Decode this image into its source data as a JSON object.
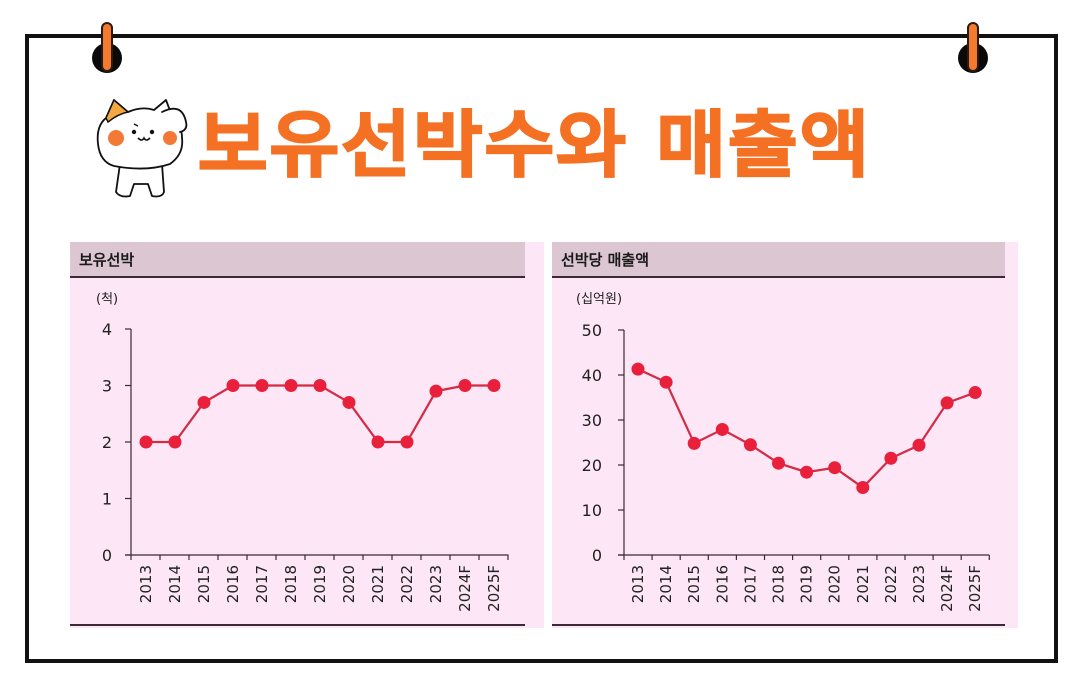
{
  "page": {
    "title": "보유선박수와 매출액",
    "accent_color": "#f47124",
    "line_color": "#e8203c",
    "panel_bg": "#fde6f5",
    "panel_header_bg": "#dcc6d2"
  },
  "panels": [
    {
      "header": "보유선박",
      "unit": "(척)"
    },
    {
      "header": "선박당 매출액",
      "unit": "(십억원)"
    }
  ],
  "chart_data": [
    {
      "type": "line",
      "title": "보유선박",
      "ylabel": "(척)",
      "xlabel": "",
      "categories": [
        "2013",
        "2014",
        "2015",
        "2016",
        "2017",
        "2018",
        "2019",
        "2020",
        "2021",
        "2022",
        "2023",
        "2024F",
        "2025F"
      ],
      "series": [
        {
          "name": "보유선박",
          "values": [
            2,
            2,
            2.7,
            3,
            3,
            3,
            3,
            2.7,
            2,
            2,
            2.9,
            3,
            3
          ]
        }
      ],
      "ylim": [
        0,
        4
      ],
      "yticks": [
        0,
        1,
        2,
        3,
        4
      ],
      "grid": false,
      "legend": "none"
    },
    {
      "type": "line",
      "title": "선박당 매출액",
      "ylabel": "(십억원)",
      "xlabel": "",
      "categories": [
        "2013",
        "2014",
        "2015",
        "2016",
        "2017",
        "2018",
        "2019",
        "2020",
        "2021",
        "2022",
        "2023",
        "2024F",
        "2025F"
      ],
      "series": [
        {
          "name": "선박당 매출액",
          "values": [
            41.3,
            38.4,
            24.8,
            27.9,
            24.5,
            20.4,
            18.4,
            19.4,
            15.0,
            21.5,
            24.4,
            33.8,
            36.1
          ]
        }
      ],
      "ylim": [
        0,
        50
      ],
      "yticks": [
        0,
        10,
        20,
        30,
        40,
        50
      ],
      "grid": false,
      "legend": "none"
    }
  ]
}
